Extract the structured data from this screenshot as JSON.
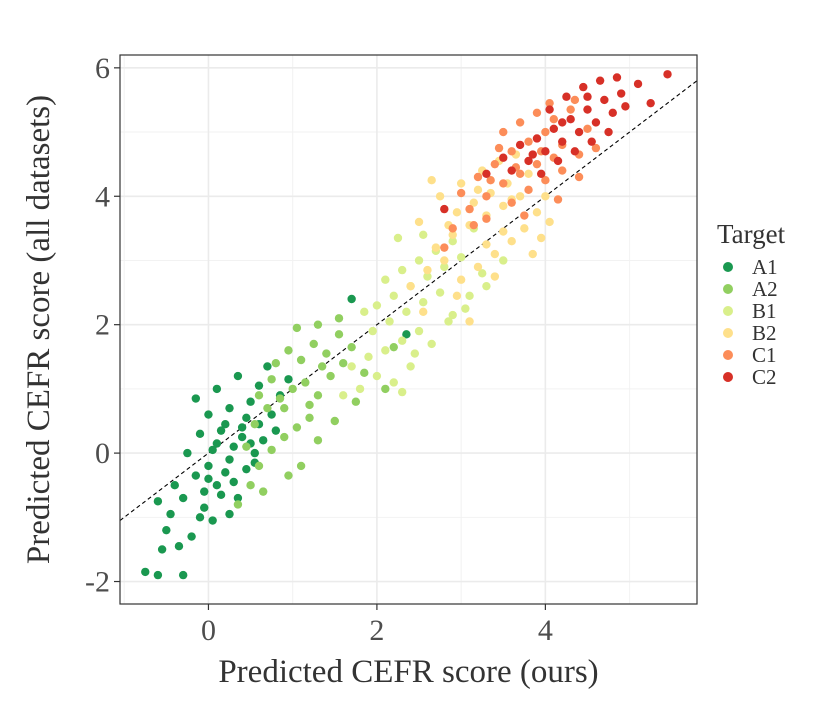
{
  "chart_data": {
    "type": "scatter",
    "title": "",
    "xlabel": "Predicted CEFR score (ours)",
    "ylabel": "Predicted CEFR score (all datasets)",
    "xlim": [
      -1.05,
      5.8
    ],
    "ylim": [
      -2.35,
      6.2
    ],
    "x_ticks": [
      0,
      2,
      4
    ],
    "y_ticks": [
      -2,
      0,
      2,
      4,
      6
    ],
    "x_tick_labels": [
      "0",
      "2",
      "4"
    ],
    "y_tick_labels": [
      "-2",
      "0",
      "2",
      "4",
      "6"
    ],
    "grid": true,
    "legend_position": "right",
    "legend_title": "Target",
    "reference_line": {
      "style": "dashed",
      "color": "#000000",
      "points": [
        [
          -1.05,
          -1.05
        ],
        [
          5.8,
          5.8
        ]
      ]
    },
    "series": [
      {
        "name": "A1",
        "color": "#1a9850",
        "points": [
          [
            -0.75,
            -1.85
          ],
          [
            -0.6,
            -1.9
          ],
          [
            -0.3,
            -1.9
          ],
          [
            -0.55,
            -1.5
          ],
          [
            -0.35,
            -1.45
          ],
          [
            -0.5,
            -1.2
          ],
          [
            -0.2,
            -1.3
          ],
          [
            -0.45,
            -0.95
          ],
          [
            -0.1,
            -1.0
          ],
          [
            0.05,
            -1.05
          ],
          [
            0.25,
            -0.95
          ],
          [
            -0.6,
            -0.75
          ],
          [
            -0.3,
            -0.7
          ],
          [
            -0.05,
            -0.6
          ],
          [
            0.1,
            -0.5
          ],
          [
            0.35,
            -0.7
          ],
          [
            -0.15,
            -0.35
          ],
          [
            0.0,
            -0.2
          ],
          [
            0.2,
            -0.3
          ],
          [
            0.45,
            -0.25
          ],
          [
            -0.25,
            0.0
          ],
          [
            0.05,
            0.05
          ],
          [
            0.3,
            0.1
          ],
          [
            0.55,
            0.0
          ],
          [
            -0.1,
            0.3
          ],
          [
            0.15,
            0.35
          ],
          [
            0.4,
            0.25
          ],
          [
            0.6,
            0.45
          ],
          [
            0.0,
            0.6
          ],
          [
            0.25,
            0.7
          ],
          [
            0.5,
            0.8
          ],
          [
            0.75,
            0.6
          ],
          [
            -0.15,
            0.85
          ],
          [
            0.1,
            1.0
          ],
          [
            0.35,
            1.2
          ],
          [
            0.6,
            1.05
          ],
          [
            0.85,
            0.9
          ],
          [
            0.7,
            1.35
          ],
          [
            0.95,
            1.15
          ],
          [
            0.2,
            0.45
          ],
          [
            0.45,
            0.55
          ],
          [
            -0.05,
            -0.85
          ],
          [
            0.15,
            -0.65
          ],
          [
            0.3,
            -0.45
          ],
          [
            0.55,
            -0.15
          ],
          [
            0.65,
            0.2
          ],
          [
            0.8,
            0.35
          ],
          [
            1.7,
            2.4
          ],
          [
            2.35,
            1.85
          ],
          [
            -0.4,
            -0.5
          ],
          [
            0.0,
            -0.4
          ],
          [
            0.1,
            0.15
          ],
          [
            0.25,
            -0.1
          ],
          [
            0.4,
            0.4
          ],
          [
            0.5,
            0.15
          ]
        ]
      },
      {
        "name": "A2",
        "color": "#91cf60",
        "points": [
          [
            0.35,
            -0.8
          ],
          [
            0.5,
            -0.5
          ],
          [
            0.6,
            -0.2
          ],
          [
            0.75,
            0.05
          ],
          [
            0.9,
            0.25
          ],
          [
            1.05,
            0.4
          ],
          [
            1.2,
            0.55
          ],
          [
            0.55,
            0.45
          ],
          [
            0.7,
            0.7
          ],
          [
            0.85,
            0.85
          ],
          [
            1.0,
            1.0
          ],
          [
            1.15,
            1.1
          ],
          [
            1.3,
            0.9
          ],
          [
            1.45,
            1.2
          ],
          [
            0.8,
            1.4
          ],
          [
            0.95,
            1.6
          ],
          [
            1.1,
            1.45
          ],
          [
            1.25,
            1.7
          ],
          [
            1.4,
            1.55
          ],
          [
            1.55,
            1.85
          ],
          [
            1.7,
            1.65
          ],
          [
            1.05,
            1.95
          ],
          [
            1.3,
            2.0
          ],
          [
            1.55,
            2.1
          ],
          [
            0.65,
            -0.6
          ],
          [
            0.95,
            -0.35
          ],
          [
            1.1,
            -0.2
          ],
          [
            1.3,
            0.2
          ],
          [
            1.5,
            0.5
          ],
          [
            1.75,
            0.8
          ],
          [
            0.9,
            0.7
          ],
          [
            1.2,
            0.75
          ],
          [
            1.35,
            1.35
          ],
          [
            1.6,
            1.4
          ],
          [
            1.85,
            1.25
          ],
          [
            0.45,
            0.1
          ],
          [
            0.6,
            0.9
          ],
          [
            0.75,
            1.15
          ],
          [
            2.1,
            1.0
          ],
          [
            2.2,
            1.65
          ]
        ]
      },
      {
        "name": "B1",
        "color": "#d9ef8b",
        "points": [
          [
            1.6,
            0.9
          ],
          [
            1.8,
            1.0
          ],
          [
            2.0,
            1.2
          ],
          [
            2.2,
            1.1
          ],
          [
            2.3,
            0.95
          ],
          [
            1.7,
            1.35
          ],
          [
            1.9,
            1.5
          ],
          [
            2.1,
            1.6
          ],
          [
            2.3,
            1.75
          ],
          [
            2.5,
            1.9
          ],
          [
            1.95,
            1.9
          ],
          [
            2.15,
            2.05
          ],
          [
            2.35,
            2.2
          ],
          [
            2.55,
            2.35
          ],
          [
            2.75,
            2.5
          ],
          [
            2.0,
            2.3
          ],
          [
            2.2,
            2.45
          ],
          [
            2.4,
            2.6
          ],
          [
            2.6,
            2.75
          ],
          [
            2.8,
            2.9
          ],
          [
            3.0,
            3.05
          ],
          [
            2.3,
            2.85
          ],
          [
            2.5,
            3.0
          ],
          [
            2.7,
            3.15
          ],
          [
            2.9,
            3.3
          ],
          [
            3.1,
            2.45
          ],
          [
            3.3,
            2.6
          ],
          [
            3.5,
            3.0
          ],
          [
            2.45,
            1.55
          ],
          [
            2.65,
            1.7
          ],
          [
            2.85,
            2.05
          ],
          [
            3.05,
            2.25
          ],
          [
            3.25,
            2.8
          ],
          [
            2.1,
            2.7
          ],
          [
            2.55,
            3.4
          ],
          [
            1.85,
            2.2
          ],
          [
            2.4,
            1.35
          ],
          [
            3.15,
            3.5
          ],
          [
            2.25,
            3.35
          ],
          [
            2.9,
            2.15
          ]
        ]
      },
      {
        "name": "B2",
        "color": "#fee08b",
        "points": [
          [
            2.4,
            2.6
          ],
          [
            2.6,
            2.85
          ],
          [
            2.8,
            3.0
          ],
          [
            3.0,
            2.7
          ],
          [
            3.2,
            2.9
          ],
          [
            3.4,
            3.1
          ],
          [
            3.6,
            3.3
          ],
          [
            2.7,
            3.2
          ],
          [
            2.9,
            3.4
          ],
          [
            3.1,
            3.55
          ],
          [
            3.3,
            3.7
          ],
          [
            3.5,
            3.85
          ],
          [
            3.7,
            4.0
          ],
          [
            3.9,
            3.75
          ],
          [
            2.95,
            3.75
          ],
          [
            3.15,
            3.9
          ],
          [
            3.35,
            4.05
          ],
          [
            3.55,
            4.2
          ],
          [
            3.75,
            3.5
          ],
          [
            3.95,
            3.35
          ],
          [
            3.1,
            2.05
          ],
          [
            2.5,
            3.6
          ],
          [
            2.75,
            4.0
          ],
          [
            3.0,
            4.2
          ],
          [
            3.25,
            4.4
          ],
          [
            3.45,
            4.55
          ],
          [
            3.65,
            4.65
          ],
          [
            3.85,
            3.1
          ],
          [
            4.05,
            3.6
          ],
          [
            2.55,
            2.2
          ],
          [
            3.3,
            3.25
          ],
          [
            3.5,
            3.45
          ],
          [
            2.85,
            3.55
          ],
          [
            3.2,
            4.1
          ],
          [
            3.6,
            3.95
          ],
          [
            2.65,
            4.25
          ],
          [
            3.8,
            4.35
          ],
          [
            4.0,
            4.0
          ],
          [
            3.4,
            2.75
          ],
          [
            2.95,
            2.45
          ]
        ]
      },
      {
        "name": "C1",
        "color": "#fc8d59",
        "points": [
          [
            2.9,
            3.5
          ],
          [
            3.1,
            3.8
          ],
          [
            3.3,
            4.0
          ],
          [
            3.5,
            4.2
          ],
          [
            3.7,
            4.35
          ],
          [
            3.9,
            4.5
          ],
          [
            4.1,
            4.6
          ],
          [
            3.2,
            4.3
          ],
          [
            3.4,
            4.5
          ],
          [
            3.6,
            4.7
          ],
          [
            3.8,
            4.85
          ],
          [
            4.0,
            5.0
          ],
          [
            4.2,
            4.8
          ],
          [
            4.4,
            4.65
          ],
          [
            3.5,
            5.0
          ],
          [
            3.7,
            5.15
          ],
          [
            3.9,
            5.3
          ],
          [
            4.1,
            5.2
          ],
          [
            4.3,
            5.35
          ],
          [
            3.6,
            3.9
          ],
          [
            3.8,
            4.1
          ],
          [
            4.0,
            4.25
          ],
          [
            4.2,
            4.4
          ],
          [
            3.3,
            3.65
          ],
          [
            4.4,
            4.3
          ],
          [
            3.0,
            4.05
          ],
          [
            3.45,
            4.75
          ],
          [
            4.5,
            5.05
          ],
          [
            4.6,
            4.75
          ],
          [
            3.75,
            3.7
          ],
          [
            4.15,
            3.95
          ],
          [
            2.8,
            3.2
          ],
          [
            3.95,
            4.7
          ],
          [
            3.35,
            4.25
          ],
          [
            4.35,
            5.5
          ],
          [
            4.05,
            5.45
          ],
          [
            3.65,
            4.45
          ],
          [
            3.15,
            3.55
          ]
        ]
      },
      {
        "name": "C2",
        "color": "#d73027",
        "points": [
          [
            3.6,
            4.4
          ],
          [
            3.8,
            4.55
          ],
          [
            4.0,
            4.7
          ],
          [
            4.2,
            4.85
          ],
          [
            4.4,
            5.0
          ],
          [
            4.6,
            5.15
          ],
          [
            4.8,
            5.3
          ],
          [
            3.9,
            4.9
          ],
          [
            4.1,
            5.05
          ],
          [
            4.3,
            5.2
          ],
          [
            4.5,
            5.35
          ],
          [
            4.7,
            5.5
          ],
          [
            4.9,
            5.6
          ],
          [
            5.1,
            5.75
          ],
          [
            4.25,
            5.55
          ],
          [
            4.45,
            5.7
          ],
          [
            4.65,
            5.8
          ],
          [
            4.85,
            5.85
          ],
          [
            5.45,
            5.9
          ],
          [
            5.25,
            5.45
          ],
          [
            3.7,
            4.8
          ],
          [
            3.95,
            4.35
          ],
          [
            4.15,
            4.55
          ],
          [
            4.35,
            4.7
          ],
          [
            4.55,
            4.85
          ],
          [
            4.75,
            5.0
          ],
          [
            2.8,
            3.8
          ],
          [
            3.3,
            4.35
          ],
          [
            3.5,
            4.6
          ],
          [
            4.05,
            5.35
          ],
          [
            4.5,
            5.55
          ],
          [
            4.95,
            5.4
          ],
          [
            4.2,
            5.15
          ],
          [
            3.85,
            4.65
          ]
        ]
      }
    ]
  }
}
